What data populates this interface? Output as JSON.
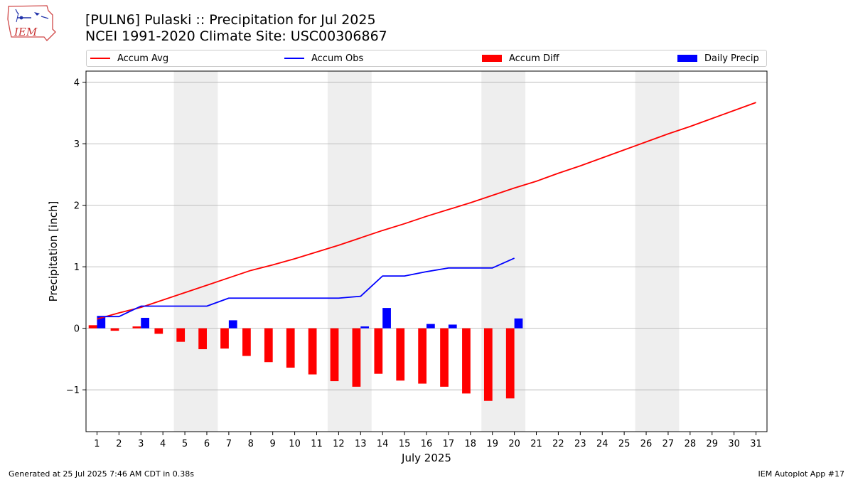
{
  "header": {
    "title_line1": "[PULN6] Pulaski :: Precipitation for Jul 2025",
    "title_line2": "NCEI 1991-2020 Climate Site: USC00306867",
    "logo_text": "IEM"
  },
  "footer": {
    "left": "Generated at 25 Jul 2025 7:46 AM CDT in 0.38s",
    "right": "IEM Autoplot App #17"
  },
  "colors": {
    "avg": "#ff0000",
    "obs": "#0000ff",
    "diff": "#ff0000",
    "daily": "#0000ff",
    "weekend_shade": "#eeeeee",
    "grid": "#b0b0b0"
  },
  "chart_data": {
    "type": "bar",
    "xlabel": "July 2025",
    "ylabel": "Precipitation [inch]",
    "xlim": [
      0.5,
      31.5
    ],
    "ylim": [
      -1.68,
      4.18
    ],
    "yticks": [
      -1,
      0,
      1,
      2,
      3,
      4
    ],
    "ytick_labels": [
      "−1",
      "0",
      "1",
      "2",
      "3",
      "4"
    ],
    "x": [
      1,
      2,
      3,
      4,
      5,
      6,
      7,
      8,
      9,
      10,
      11,
      12,
      13,
      14,
      15,
      16,
      17,
      18,
      19,
      20,
      21,
      22,
      23,
      24,
      25,
      26,
      27,
      28,
      29,
      30,
      31
    ],
    "x_labels": [
      "1",
      "2",
      "3",
      "4",
      "5",
      "6",
      "7",
      "8",
      "9",
      "10",
      "11",
      "12",
      "13",
      "14",
      "15",
      "16",
      "17",
      "18",
      "19",
      "20",
      "21",
      "22",
      "23",
      "24",
      "25",
      "26",
      "27",
      "28",
      "29",
      "30",
      "31"
    ],
    "weekend_spans": [
      [
        4.5,
        6.5
      ],
      [
        11.5,
        13.5
      ],
      [
        18.5,
        20.5
      ],
      [
        25.5,
        27.5
      ]
    ],
    "grid": "y",
    "legend_placement": "top",
    "series": [
      {
        "name": "Accum Avg",
        "kind": "line",
        "x": [
          1,
          2,
          3,
          4,
          5,
          6,
          7,
          8,
          9,
          10,
          11,
          12,
          13,
          14,
          15,
          16,
          17,
          18,
          19,
          20,
          21,
          22,
          23,
          24,
          25,
          26,
          27,
          28,
          29,
          30,
          31
        ],
        "values": [
          0.15,
          0.25,
          0.34,
          0.46,
          0.58,
          0.7,
          0.82,
          0.94,
          1.03,
          1.13,
          1.24,
          1.35,
          1.47,
          1.59,
          1.7,
          1.82,
          1.93,
          2.04,
          2.16,
          2.28,
          2.39,
          2.52,
          2.64,
          2.77,
          2.9,
          3.03,
          3.16,
          3.28,
          3.41,
          3.54,
          3.67
        ]
      },
      {
        "name": "Accum Obs",
        "kind": "line",
        "x": [
          1,
          2,
          3,
          4,
          5,
          6,
          7,
          8,
          9,
          10,
          11,
          12,
          13,
          14,
          15,
          16,
          17,
          18,
          19,
          20
        ],
        "values": [
          0.19,
          0.19,
          0.36,
          0.36,
          0.36,
          0.36,
          0.49,
          0.49,
          0.49,
          0.49,
          0.49,
          0.49,
          0.52,
          0.85,
          0.85,
          0.92,
          0.98,
          0.98,
          0.98,
          1.14
        ]
      },
      {
        "name": "Accum Diff",
        "kind": "bar",
        "x": [
          1,
          2,
          3,
          4,
          5,
          6,
          7,
          8,
          9,
          10,
          11,
          12,
          13,
          14,
          15,
          16,
          17,
          18,
          19,
          20
        ],
        "values": [
          0.05,
          -0.04,
          0.03,
          -0.09,
          -0.22,
          -0.34,
          -0.33,
          -0.45,
          -0.55,
          -0.64,
          -0.75,
          -0.86,
          -0.95,
          -0.74,
          -0.85,
          -0.9,
          -0.95,
          -1.06,
          -1.18,
          -1.14
        ]
      },
      {
        "name": "Daily Precip",
        "kind": "bar",
        "x": [
          1,
          3,
          7,
          13,
          14,
          16,
          17,
          20
        ],
        "values": [
          0.19,
          0.17,
          0.13,
          0.03,
          0.33,
          0.07,
          0.06,
          0.16
        ]
      }
    ]
  }
}
